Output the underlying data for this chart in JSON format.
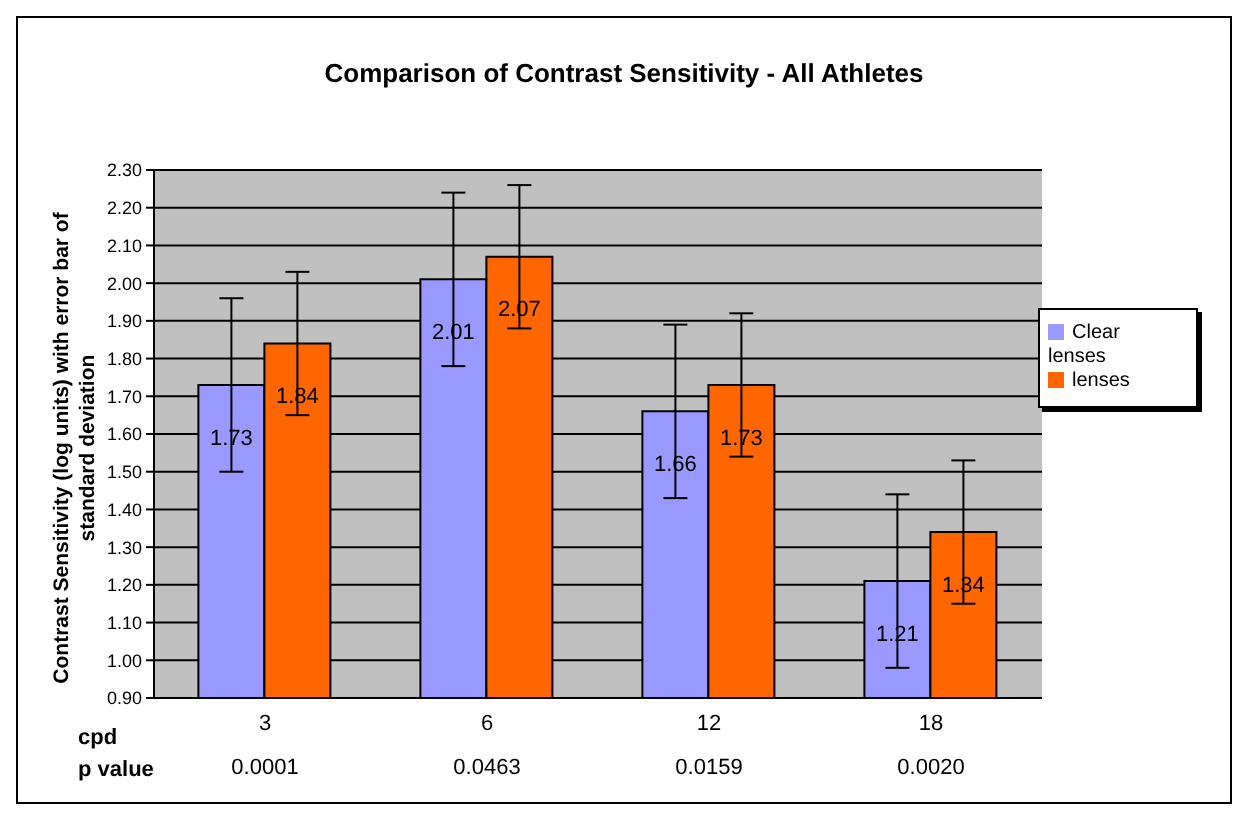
{
  "chart_data": {
    "type": "bar",
    "title": "Comparison of Contrast Sensitivity - All Athletes",
    "xlabel": "cpd",
    "ylabel": "Contrast Sensitivity (log units) with error bar of standard deviation",
    "categories": [
      "3",
      "6",
      "12",
      "18"
    ],
    "series": [
      {
        "name": "Clear lenses",
        "color": "#9999ff",
        "values": [
          1.73,
          2.01,
          1.66,
          1.21
        ],
        "errors": [
          0.23,
          0.23,
          0.23,
          0.23
        ]
      },
      {
        "name": "lenses",
        "color": "#ff6600",
        "values": [
          1.84,
          2.07,
          1.73,
          1.34
        ],
        "errors": [
          0.19,
          0.19,
          0.19,
          0.19
        ]
      }
    ],
    "ylim": [
      0.9,
      2.3
    ],
    "yticks": [
      {
        "value": 0.9,
        "label": "0.90"
      },
      {
        "value": 1.0,
        "label": "1.00"
      },
      {
        "value": 1.1,
        "label": "1.10"
      },
      {
        "value": 1.2,
        "label": "1.20"
      },
      {
        "value": 1.3,
        "label": "1.30"
      },
      {
        "value": 1.4,
        "label": "1.40"
      },
      {
        "value": 1.5,
        "label": "1.50"
      },
      {
        "value": 1.6,
        "label": "1.60"
      },
      {
        "value": 1.7,
        "label": "1.70"
      },
      {
        "value": 1.8,
        "label": "1.80"
      },
      {
        "value": 1.9,
        "label": "1.90"
      },
      {
        "value": 2.0,
        "label": "2.00"
      },
      {
        "value": 2.1,
        "label": "2.10"
      },
      {
        "value": 2.2,
        "label": "2.20"
      },
      {
        "value": 2.3,
        "label": "2.30"
      }
    ],
    "grid": "y",
    "legend": "right",
    "data_labels": true,
    "annotations": [
      "p value",
      "0.0001",
      "0.0463",
      "0.0159",
      "0.0020"
    ]
  }
}
